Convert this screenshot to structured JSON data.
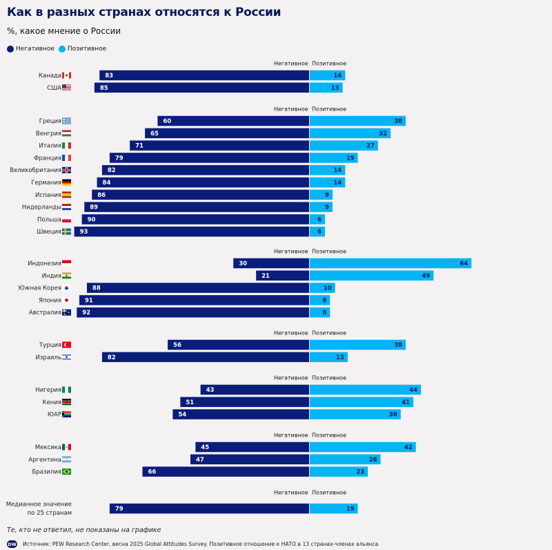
{
  "title": "Как в разных странах относятся к России",
  "subtitle": "%, какое мнение о России",
  "legend": {
    "negative_label": "Негативное",
    "positive_label": "Позитивное",
    "negative_color": "#0b1d7a",
    "positive_color": "#04b4f4"
  },
  "chart_data": {
    "type": "bar",
    "orientation": "horizontal-diverging",
    "axis_center_labels": {
      "negative": "Негативное",
      "positive": "Позитивное"
    },
    "groups": [
      {
        "rows": [
          {
            "label": "Канада",
            "flag": "Canada",
            "negative": 83,
            "positive": 14
          },
          {
            "label": "США",
            "flag": "USA",
            "negative": 85,
            "positive": 13
          }
        ]
      },
      {
        "rows": [
          {
            "label": "Греция",
            "flag": "Greece",
            "negative": 60,
            "positive": 38
          },
          {
            "label": "Венгрия",
            "flag": "Hungary",
            "negative": 65,
            "positive": 32
          },
          {
            "label": "Италия",
            "flag": "Italy",
            "negative": 71,
            "positive": 27
          },
          {
            "label": "Франция",
            "flag": "France",
            "negative": 79,
            "positive": 19
          },
          {
            "label": "Великобритания",
            "flag": "UK",
            "negative": 82,
            "positive": 14
          },
          {
            "label": "Германия",
            "flag": "Germany",
            "negative": 84,
            "positive": 14
          },
          {
            "label": "Испания",
            "flag": "Spain",
            "negative": 86,
            "positive": 9
          },
          {
            "label": "Нидерланды",
            "flag": "Netherlands",
            "negative": 89,
            "positive": 9
          },
          {
            "label": "Польша",
            "flag": "Poland",
            "negative": 90,
            "positive": 6
          },
          {
            "label": "Швеция",
            "flag": "Sweden",
            "negative": 93,
            "positive": 6
          }
        ]
      },
      {
        "rows": [
          {
            "label": "Индонезия",
            "flag": "Indonesia",
            "negative": 30,
            "positive": 64
          },
          {
            "label": "Индия",
            "flag": "India",
            "negative": 21,
            "positive": 49
          },
          {
            "label": "Южная Корея",
            "flag": "South Korea",
            "negative": 88,
            "positive": 10
          },
          {
            "label": "Япония",
            "flag": "Japan",
            "negative": 91,
            "positive": 8
          },
          {
            "label": "Австралия",
            "flag": "Australia",
            "negative": 92,
            "positive": 8
          }
        ]
      },
      {
        "rows": [
          {
            "label": "Турция",
            "flag": "Turkey",
            "negative": 56,
            "positive": 38
          },
          {
            "label": "Израиль",
            "flag": "Israel",
            "negative": 82,
            "positive": 15
          }
        ]
      },
      {
        "rows": [
          {
            "label": "Нигерия",
            "flag": "Nigeria",
            "negative": 43,
            "positive": 44
          },
          {
            "label": "Кения",
            "flag": "Kenya",
            "negative": 51,
            "positive": 41
          },
          {
            "label": "ЮАР",
            "flag": "South Africa",
            "negative": 54,
            "positive": 36
          }
        ]
      },
      {
        "rows": [
          {
            "label": "Мексика",
            "flag": "Mexico",
            "negative": 45,
            "positive": 42
          },
          {
            "label": "Аргентина",
            "flag": "Argentina",
            "negative": 47,
            "positive": 28
          },
          {
            "label": "Бразилия",
            "flag": "Brazil",
            "negative": 66,
            "positive": 23
          }
        ]
      },
      {
        "rows": [
          {
            "label": "Медианное значение по 25 странам",
            "label_lines": [
              "Медианное значение",
              "по 25 странам"
            ],
            "flag": "",
            "negative": 79,
            "positive": 19
          }
        ]
      }
    ]
  },
  "footnote": "Те, кто не ответил, не показаны на графике",
  "source": "Источник: PEW Research Center, весна 2025 Global Attitudes Survey. Позитивное отношение к НАТО в 13 странах-членах альянса",
  "logo_text": "DW"
}
